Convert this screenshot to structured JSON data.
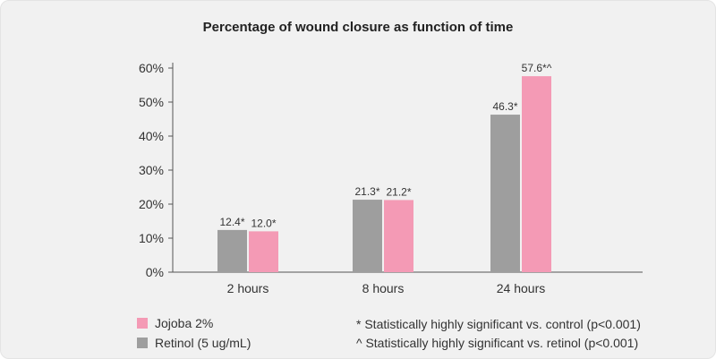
{
  "colors": {
    "jojoba": "#f49ab5",
    "retinol": "#9e9e9e"
  },
  "legend": [
    {
      "label": "Jojoba 2%",
      "color": "#f49ab5"
    },
    {
      "label": "Retinol (5 ug/mL)",
      "color": "#9e9e9e"
    }
  ],
  "notes": {
    "control": "* Statistically highly significant vs. control (p<0.001)",
    "retinol": "^ Statistically highly significant vs. retinol (p<0.001)"
  },
  "chart_data": {
    "type": "bar",
    "title": "Percentage of wound closure as function of time",
    "xlabel": "",
    "ylabel": "",
    "categories": [
      "2 hours",
      "8 hours",
      "24 hours"
    ],
    "ylim": [
      0,
      60
    ],
    "yticks": [
      "0%",
      "10%",
      "20%",
      "30%",
      "40%",
      "50%",
      "60%"
    ],
    "grid": false,
    "legend_position": "bottom-left",
    "series": [
      {
        "name": "Retinol (5 ug/mL)",
        "values": [
          12.4,
          21.3,
          46.3
        ],
        "labels": [
          "12.4*",
          "21.3*",
          "46.3*"
        ],
        "color": "#9e9e9e"
      },
      {
        "name": "Jojoba 2%",
        "values": [
          12.0,
          21.2,
          57.6
        ],
        "labels": [
          "12.0*",
          "21.2*",
          "57.6*^"
        ],
        "color": "#f49ab5"
      }
    ]
  }
}
